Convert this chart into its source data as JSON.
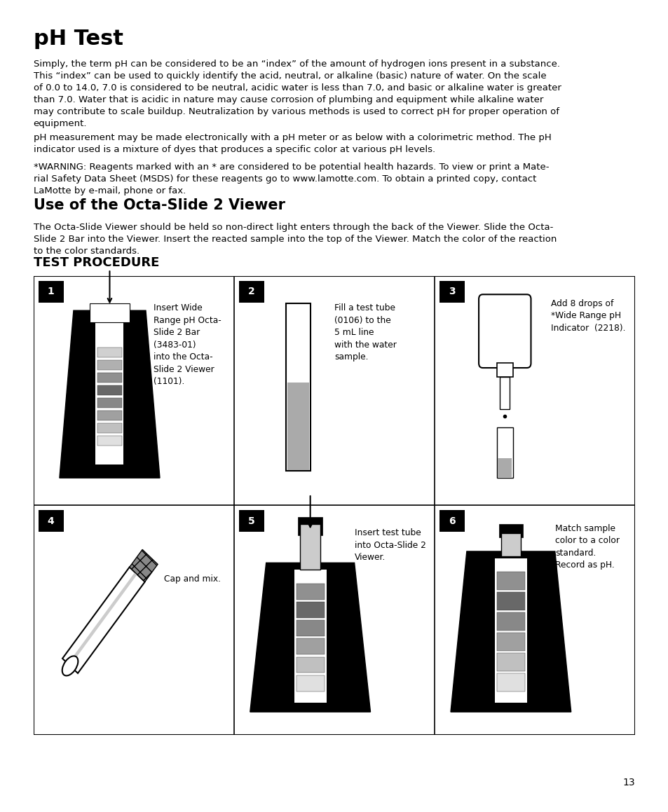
{
  "title": "pH Test",
  "bg_color": "#ffffff",
  "text_color": "#000000",
  "page_number": "13",
  "para1": "Simply, the term pH can be considered to be an “index” of the amount of hydrogen ions present in a substance.\nThis “index” can be used to quickly identify the acid, neutral, or alkaline (basic) nature of water. On the scale\nof 0.0 to 14.0, 7.0 is considered to be neutral, acidic water is less than 7.0, and basic or alkaline water is greater\nthan 7.0. Water that is acidic in nature may cause corrosion of plumbing and equipment while alkaline water\nmay contribute to scale buildup. Neutralization by various methods is used to correct pH for proper operation of\nequipment.",
  "para2": "pH measurement may be made electronically with a pH meter or as below with a colorimetric method. The pH\nindicator used is a mixture of dyes that produces a specific color at various pH levels.",
  "para3": "*WARNING: Reagents marked with an * are considered to be potential health hazards. To view or print a Mate-\nrial Safety Data Sheet (MSDS) for these reagents go to www.lamotte.com. To obtain a printed copy, contact\nLaMotte by e-mail, phone or fax.",
  "section2_title": "Use of the Octa-Slide 2 Viewer",
  "section2_text": "The Octa-Slide Viewer should be held so non-direct light enters through the back of the Viewer. Slide the Octa-\nSlide 2 Bar into the Viewer. Insert the reacted sample into the top of the Viewer. Match the color of the reaction\nto the color standards.",
  "section3_title": "TEST PROCEDURE",
  "step1_text": "Insert Wide\nRange pH Octa-\nSlide 2 Bar\n(3483-01)\ninto the Octa-\nSlide 2 Viewer\n(1101).",
  "step2_text": "Fill a test tube\n(0106) to the\n5 mL line\nwith the water\nsample.",
  "step3_text": "Add 8 drops of\n*Wide Range pH\nIndicator  (2218).",
  "step4_text": "Cap and mix.",
  "step5_text": "Insert test tube\ninto Octa-Slide 2\nViewer.",
  "step6_text": "Match sample\ncolor to a color\nstandard.\nRecord as pH.",
  "body_fontsize": 9.5,
  "title_fontsize": 22,
  "section2_title_fontsize": 15,
  "section3_title_fontsize": 13,
  "step_fontsize": 8.8
}
